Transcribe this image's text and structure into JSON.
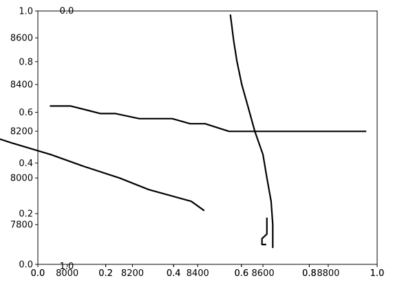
{
  "chart_data": [
    {
      "type": "line",
      "title": "",
      "xlabel": "",
      "ylabel": "",
      "xlim": [
        0,
        1
      ],
      "ylim": [
        0,
        1
      ],
      "xticks": [
        "0.0",
        "0.2",
        "0.4",
        "0.6",
        "0.8",
        "1.0"
      ],
      "yticks": [
        "0.0",
        "0.2",
        "0.4",
        "0.6",
        "0.8",
        "1.0"
      ],
      "grid": false
    },
    {
      "type": "line",
      "title": "",
      "xlabel": "",
      "ylabel": "",
      "xlim": [
        0,
        1
      ],
      "ylim": [
        0,
        1
      ],
      "xticks": [
        "0.0",
        "0.2",
        "0.4",
        "0.6",
        "0.8",
        "1.0"
      ],
      "yticks": [],
      "grid": false
    },
    {
      "type": "line",
      "title": "",
      "xlabel": "",
      "ylabel": "",
      "xlim": [
        7910,
        8950
      ],
      "ylim": [
        0,
        1
      ],
      "xticks": [
        "8000",
        "8200",
        "8400",
        "8600",
        "8800"
      ],
      "yticks": [
        "0.0",
        "1.0"
      ],
      "grid": false,
      "series": [
        {
          "x": [
            8630,
            8630,
            8625,
            8612,
            8600,
            8575,
            8555,
            8535,
            8520,
            8510,
            8500
          ],
          "y": [
            7700,
            7800,
            7900,
            8000,
            8100,
            8200,
            8300,
            8400,
            8500,
            8590,
            8700
          ]
        }
      ]
    },
    {
      "type": "line",
      "title": "",
      "xlabel": "",
      "ylabel": "",
      "xlim": [
        0,
        1
      ],
      "ylim": [
        7630,
        8715
      ],
      "xticks": [],
      "yticks": [
        "7800",
        "8000",
        "8200",
        "8400",
        "8600"
      ],
      "grid": false,
      "series": [
        {
          "x": [
            8420,
            8380,
            8250,
            8160,
            8050,
            7950,
            7830,
            7720,
            7610,
            7550,
            7480,
            7400,
            7290,
            7180,
            7040
          ],
          "y": [
            7860,
            7900,
            7950,
            8000,
            8050,
            8100,
            8150,
            8200,
            8250,
            8300,
            8350,
            8400,
            8450,
            8500,
            8600
          ]
        }
      ]
    },
    {
      "type": "line",
      "title": "",
      "xlabel": "",
      "ylabel": "",
      "xlim": [
        0,
        1
      ],
      "ylim": [
        0,
        1
      ],
      "xticks": [],
      "yticks": [],
      "grid": false,
      "series": [
        {
          "x": [
            0.04,
            0.11,
            0.21,
            0.26,
            0.34,
            0.45,
            0.51,
            0.56,
            0.64,
            0.74,
            0.87,
            1.0,
            1.1
          ],
          "y": [
            0.625,
            0.625,
            0.595,
            0.595,
            0.575,
            0.575,
            0.555,
            0.555,
            0.525,
            0.525,
            0.525,
            0.525,
            0.525
          ]
        }
      ]
    }
  ]
}
